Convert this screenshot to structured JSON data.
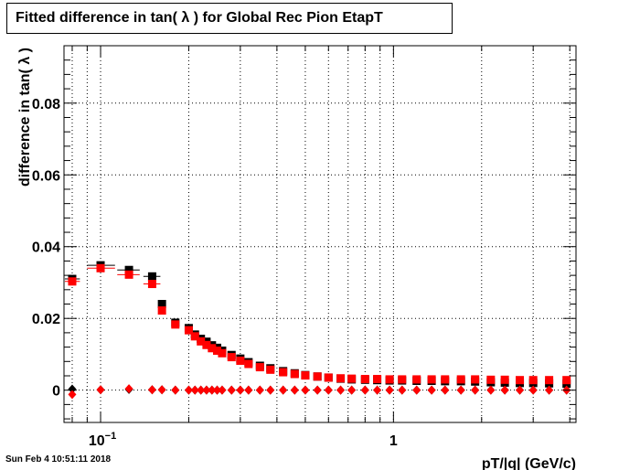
{
  "chart_data": {
    "type": "scatter",
    "title": "Fitted difference in tan( λ ) for Global Rec Pion EtapT",
    "xlabel": "pT/|q| (GeV/c)",
    "ylabel": "difference in tan( λ )",
    "x_scale": "log",
    "xlim": [
      0.075,
      4.2
    ],
    "ylim": [
      -0.009,
      0.096
    ],
    "grid": true,
    "y_ticks": [
      {
        "v": 0,
        "label": "0"
      },
      {
        "v": 0.02,
        "label": "0.02"
      },
      {
        "v": 0.04,
        "label": "0.04"
      },
      {
        "v": 0.06,
        "label": "0.06"
      },
      {
        "v": 0.08,
        "label": "0.08"
      }
    ],
    "x_tick_labels": [
      {
        "v": 0.1,
        "label": "10^{-1}",
        "base": "10",
        "exp": "−1"
      },
      {
        "v": 1,
        "label": "1"
      }
    ],
    "series": [
      {
        "color": "#000000",
        "marker": "square",
        "points": [
          {
            "x": 0.08,
            "y": 0.031,
            "xlo": 0.0755,
            "xhi": 0.085
          },
          {
            "x": 0.1,
            "y": 0.0348,
            "xlo": 0.09,
            "xhi": 0.112
          },
          {
            "x": 0.125,
            "y": 0.0335,
            "xlo": 0.114,
            "xhi": 0.136
          },
          {
            "x": 0.15,
            "y": 0.0317,
            "xlo": 0.14,
            "xhi": 0.16
          },
          {
            "x": 0.162,
            "y": 0.024
          },
          {
            "x": 0.18,
            "y": 0.0188
          },
          {
            "x": 0.2,
            "y": 0.0173
          },
          {
            "x": 0.21,
            "y": 0.0155
          },
          {
            "x": 0.22,
            "y": 0.0143
          },
          {
            "x": 0.23,
            "y": 0.0135
          },
          {
            "x": 0.24,
            "y": 0.0125
          },
          {
            "x": 0.25,
            "y": 0.0118
          },
          {
            "x": 0.26,
            "y": 0.011
          },
          {
            "x": 0.28,
            "y": 0.0098
          },
          {
            "x": 0.3,
            "y": 0.0088
          },
          {
            "x": 0.32,
            "y": 0.0078
          },
          {
            "x": 0.35,
            "y": 0.0068
          },
          {
            "x": 0.38,
            "y": 0.0061
          },
          {
            "x": 0.42,
            "y": 0.0053
          },
          {
            "x": 0.46,
            "y": 0.0047
          },
          {
            "x": 0.5,
            "y": 0.0042
          },
          {
            "x": 0.55,
            "y": 0.0038
          },
          {
            "x": 0.6,
            "y": 0.0035
          },
          {
            "x": 0.66,
            "y": 0.0032
          },
          {
            "x": 0.72,
            "y": 0.003
          },
          {
            "x": 0.8,
            "y": 0.0029
          },
          {
            "x": 0.88,
            "y": 0.0028
          },
          {
            "x": 0.97,
            "y": 0.0027
          },
          {
            "x": 1.07,
            "y": 0.0027
          },
          {
            "x": 1.2,
            "y": 0.0026
          },
          {
            "x": 1.35,
            "y": 0.0026
          },
          {
            "x": 1.5,
            "y": 0.0025
          },
          {
            "x": 1.7,
            "y": 0.0025
          },
          {
            "x": 1.9,
            "y": 0.0024
          },
          {
            "x": 2.15,
            "y": 0.0022
          },
          {
            "x": 2.4,
            "y": 0.0021
          },
          {
            "x": 2.7,
            "y": 0.002
          },
          {
            "x": 3.0,
            "y": 0.002
          },
          {
            "x": 3.4,
            "y": 0.0019
          },
          {
            "x": 3.9,
            "y": 0.0018
          }
        ]
      },
      {
        "color": "#ff0000",
        "marker": "square",
        "points": [
          {
            "x": 0.08,
            "y": 0.0303,
            "xlo": 0.0755,
            "xhi": 0.085
          },
          {
            "x": 0.1,
            "y": 0.034,
            "xlo": 0.09,
            "xhi": 0.112
          },
          {
            "x": 0.125,
            "y": 0.0322,
            "xlo": 0.114,
            "xhi": 0.136
          },
          {
            "x": 0.15,
            "y": 0.0296,
            "xlo": 0.14,
            "xhi": 0.16
          },
          {
            "x": 0.162,
            "y": 0.0222
          },
          {
            "x": 0.18,
            "y": 0.0183
          },
          {
            "x": 0.2,
            "y": 0.0167
          },
          {
            "x": 0.21,
            "y": 0.015
          },
          {
            "x": 0.22,
            "y": 0.0136
          },
          {
            "x": 0.23,
            "y": 0.0126
          },
          {
            "x": 0.24,
            "y": 0.0117
          },
          {
            "x": 0.25,
            "y": 0.011
          },
          {
            "x": 0.26,
            "y": 0.0103
          },
          {
            "x": 0.28,
            "y": 0.0092
          },
          {
            "x": 0.3,
            "y": 0.0082
          },
          {
            "x": 0.32,
            "y": 0.0073
          },
          {
            "x": 0.35,
            "y": 0.0064
          },
          {
            "x": 0.38,
            "y": 0.0057
          },
          {
            "x": 0.42,
            "y": 0.005
          },
          {
            "x": 0.46,
            "y": 0.0045
          },
          {
            "x": 0.5,
            "y": 0.0041
          },
          {
            "x": 0.55,
            "y": 0.0038
          },
          {
            "x": 0.6,
            "y": 0.0035
          },
          {
            "x": 0.66,
            "y": 0.0033
          },
          {
            "x": 0.72,
            "y": 0.0032
          },
          {
            "x": 0.8,
            "y": 0.0031
          },
          {
            "x": 0.88,
            "y": 0.0031
          },
          {
            "x": 0.97,
            "y": 0.003
          },
          {
            "x": 1.07,
            "y": 0.003
          },
          {
            "x": 1.2,
            "y": 0.003
          },
          {
            "x": 1.35,
            "y": 0.003
          },
          {
            "x": 1.5,
            "y": 0.003
          },
          {
            "x": 1.7,
            "y": 0.003
          },
          {
            "x": 1.9,
            "y": 0.003
          },
          {
            "x": 2.15,
            "y": 0.0029
          },
          {
            "x": 2.4,
            "y": 0.0029
          },
          {
            "x": 2.7,
            "y": 0.0028
          },
          {
            "x": 3.0,
            "y": 0.0028
          },
          {
            "x": 3.4,
            "y": 0.0028
          },
          {
            "x": 3.9,
            "y": 0.0028
          }
        ]
      },
      {
        "color": "#000000",
        "marker": "diamond",
        "points": [
          {
            "x": 0.08,
            "y": 0.0003
          },
          {
            "x": 0.1,
            "y": 0.0001
          },
          {
            "x": 0.125,
            "y": 0.0002
          },
          {
            "x": 0.15,
            "y": 0.0001
          },
          {
            "x": 0.162,
            "y": 0.0001
          },
          {
            "x": 0.18,
            "y": 0.0
          },
          {
            "x": 0.2,
            "y": 0.0
          },
          {
            "x": 0.21,
            "y": 0.0
          },
          {
            "x": 0.22,
            "y": 0.0
          },
          {
            "x": 0.23,
            "y": 0.0
          },
          {
            "x": 0.24,
            "y": 0.0
          },
          {
            "x": 0.25,
            "y": 0.0
          },
          {
            "x": 0.26,
            "y": 0.0
          },
          {
            "x": 0.28,
            "y": 0.0
          },
          {
            "x": 0.3,
            "y": 0.0
          },
          {
            "x": 0.32,
            "y": 0.0
          },
          {
            "x": 0.35,
            "y": 0.0
          },
          {
            "x": 0.38,
            "y": 0.0
          },
          {
            "x": 0.42,
            "y": 0.0
          },
          {
            "x": 0.46,
            "y": 0.0
          },
          {
            "x": 0.5,
            "y": 0.0
          },
          {
            "x": 0.55,
            "y": 0.0
          },
          {
            "x": 0.6,
            "y": 0.0
          },
          {
            "x": 0.66,
            "y": 0.0
          },
          {
            "x": 0.72,
            "y": 0.0
          },
          {
            "x": 0.8,
            "y": 0.0
          },
          {
            "x": 0.88,
            "y": 0.0
          },
          {
            "x": 0.97,
            "y": 0.0
          },
          {
            "x": 1.07,
            "y": 0.0
          },
          {
            "x": 1.2,
            "y": 0.0
          },
          {
            "x": 1.35,
            "y": 0.0
          },
          {
            "x": 1.5,
            "y": 0.0
          },
          {
            "x": 1.7,
            "y": 0.0
          },
          {
            "x": 1.9,
            "y": 0.0
          },
          {
            "x": 2.15,
            "y": 0.0
          },
          {
            "x": 2.4,
            "y": 0.0
          },
          {
            "x": 2.7,
            "y": 0.0
          },
          {
            "x": 3.0,
            "y": 0.0
          },
          {
            "x": 3.4,
            "y": 0.0
          },
          {
            "x": 3.9,
            "y": 0.0
          }
        ]
      },
      {
        "color": "#ff0000",
        "marker": "diamond",
        "points": [
          {
            "x": 0.08,
            "y": -0.0012
          },
          {
            "x": 0.1,
            "y": 0.0001
          },
          {
            "x": 0.125,
            "y": 0.0004
          },
          {
            "x": 0.15,
            "y": 0.0001
          },
          {
            "x": 0.162,
            "y": 0.0001
          },
          {
            "x": 0.18,
            "y": 0.0
          },
          {
            "x": 0.2,
            "y": 0.0
          },
          {
            "x": 0.21,
            "y": 0.0
          },
          {
            "x": 0.22,
            "y": 0.0
          },
          {
            "x": 0.23,
            "y": 0.0
          },
          {
            "x": 0.24,
            "y": 0.0
          },
          {
            "x": 0.25,
            "y": 0.0
          },
          {
            "x": 0.26,
            "y": 0.0
          },
          {
            "x": 0.28,
            "y": 0.0
          },
          {
            "x": 0.3,
            "y": 0.0
          },
          {
            "x": 0.32,
            "y": 0.0
          },
          {
            "x": 0.35,
            "y": 0.0
          },
          {
            "x": 0.38,
            "y": 0.0
          },
          {
            "x": 0.42,
            "y": 0.0
          },
          {
            "x": 0.46,
            "y": 0.0
          },
          {
            "x": 0.5,
            "y": 0.0
          },
          {
            "x": 0.55,
            "y": 0.0
          },
          {
            "x": 0.6,
            "y": 0.0
          },
          {
            "x": 0.66,
            "y": 0.0
          },
          {
            "x": 0.72,
            "y": 0.0
          },
          {
            "x": 0.8,
            "y": 0.0
          },
          {
            "x": 0.88,
            "y": 0.0
          },
          {
            "x": 0.97,
            "y": 0.0
          },
          {
            "x": 1.07,
            "y": 0.0
          },
          {
            "x": 1.2,
            "y": 0.0
          },
          {
            "x": 1.35,
            "y": 0.0
          },
          {
            "x": 1.5,
            "y": 0.0
          },
          {
            "x": 1.7,
            "y": 0.0
          },
          {
            "x": 1.9,
            "y": 0.0
          },
          {
            "x": 2.15,
            "y": 0.0
          },
          {
            "x": 2.4,
            "y": 0.0
          },
          {
            "x": 2.7,
            "y": 0.0
          },
          {
            "x": 3.0,
            "y": 0.0
          },
          {
            "x": 3.4,
            "y": 0.0
          },
          {
            "x": 3.9,
            "y": 0.0
          }
        ]
      }
    ]
  },
  "timestamp": "Sun Feb  4 10:51:11 2018"
}
